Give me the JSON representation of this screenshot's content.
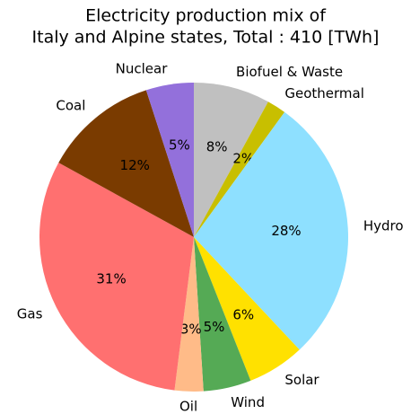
{
  "chart_data": {
    "type": "pie",
    "title": [
      "Electricity production mix of",
      "Italy and Alpine states, Total : 410 [TWh]"
    ],
    "categories": [
      "Biofuel & Waste",
      "Geothermal",
      "Hydro",
      "Solar",
      "Wind",
      "Oil",
      "Gas",
      "Coal",
      "Nuclear"
    ],
    "values": [
      8,
      2,
      28,
      6,
      5,
      3,
      31,
      12,
      5
    ],
    "value_labels": [
      "8%",
      "2%",
      "28%",
      "6%",
      "5%",
      "3%",
      "31%",
      "12%",
      "5%"
    ],
    "colors": [
      "#c0c0c0",
      "#c8bf00",
      "#8ee0ff",
      "#ffe100",
      "#55aa55",
      "#ffbb88",
      "#ff7070",
      "#7a3b00",
      "#9370db"
    ],
    "startangle": 90,
    "counterclock": false
  }
}
